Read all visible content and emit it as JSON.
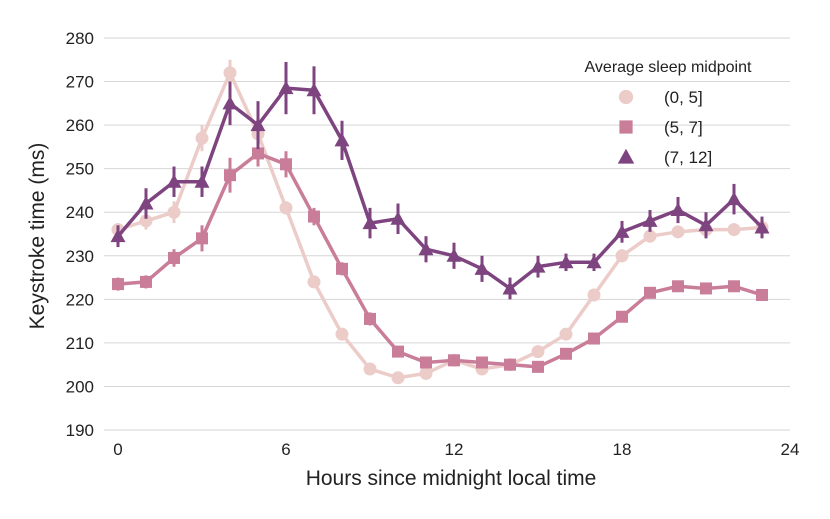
{
  "chart_data": {
    "type": "line",
    "title": "",
    "xlabel": "Hours since midnight local time",
    "ylabel": "Keystroke time (ms)",
    "xlim": [
      -0.7,
      24
    ],
    "ylim": [
      190,
      280
    ],
    "xticks": [
      0,
      6,
      12,
      18,
      24
    ],
    "yticks": [
      190,
      200,
      210,
      220,
      230,
      240,
      250,
      260,
      270,
      280
    ],
    "grid": "horizontal",
    "legend": {
      "title": "Average sleep midpoint",
      "position": "top-right"
    },
    "x": [
      0,
      1,
      2,
      3,
      4,
      5,
      6,
      7,
      8,
      9,
      10,
      11,
      12,
      13,
      14,
      15,
      16,
      17,
      18,
      19,
      20,
      21,
      22,
      23
    ],
    "series": [
      {
        "name": "(0, 5]",
        "marker": "circle",
        "color": "#ecccc8",
        "values": [
          236,
          238,
          240,
          257,
          272,
          258,
          241,
          224,
          212,
          204,
          202,
          203,
          206,
          204,
          205,
          208,
          212,
          221,
          230,
          234.5,
          235.5,
          236,
          236,
          236.5
        ],
        "errors": [
          1.5,
          2,
          2.5,
          3,
          3,
          2.5,
          1.5,
          1,
          1,
          1,
          1,
          1,
          1,
          1,
          1,
          1,
          1,
          1,
          1.5,
          1.5,
          1,
          1,
          1,
          1
        ]
      },
      {
        "name": "(5, 7]",
        "marker": "square",
        "color": "#c97d98",
        "values": [
          223.5,
          224,
          229.5,
          234,
          248.5,
          253.5,
          251,
          239,
          227,
          215.5,
          208,
          205.5,
          206,
          205.5,
          205,
          204.5,
          207.5,
          211,
          216,
          221.5,
          223,
          222.5,
          223,
          221
        ],
        "errors": [
          1.5,
          1.5,
          2,
          3,
          4,
          3,
          3,
          2,
          1.5,
          1.5,
          1,
          1,
          1,
          1,
          1,
          1,
          1,
          1,
          1,
          1,
          1,
          1,
          1,
          1
        ]
      },
      {
        "name": "(7, 12]",
        "marker": "triangle",
        "color": "#7e4480",
        "values": [
          234.5,
          242,
          247,
          247,
          265,
          260,
          268.5,
          268,
          256.5,
          237.5,
          238.5,
          231.5,
          230,
          227,
          222.5,
          227.5,
          228.5,
          228.5,
          235.5,
          238,
          240.5,
          237,
          243,
          236.5
        ],
        "errors": [
          2.5,
          3.5,
          3.5,
          3.5,
          5,
          5.5,
          6,
          5.5,
          4.5,
          3.5,
          3.5,
          3,
          3,
          3,
          2.5,
          2.5,
          2,
          2,
          2.5,
          2.5,
          3,
          3,
          3.5,
          2.5
        ]
      }
    ]
  }
}
